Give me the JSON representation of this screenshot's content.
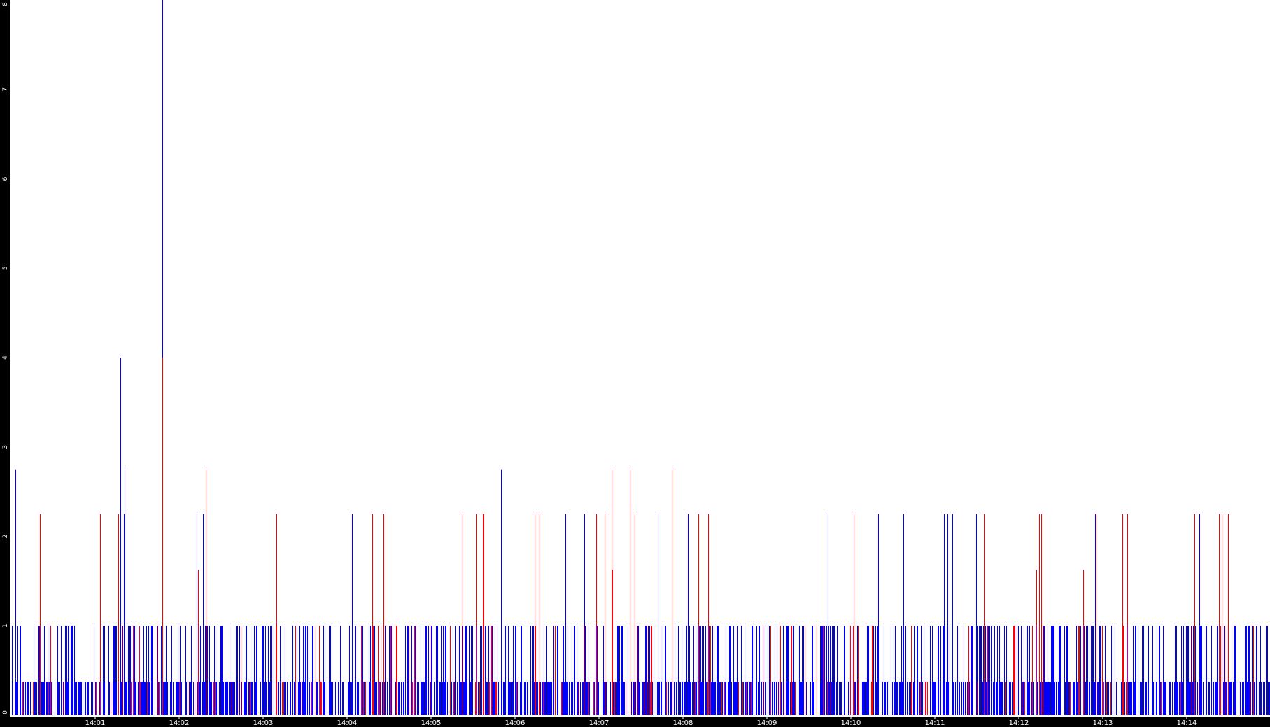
{
  "chart_data": {
    "type": "bar",
    "background": "#ffffff",
    "axis_color": "#000000",
    "label_color": "#ffffff",
    "ylim": [
      0,
      8
    ],
    "y_ticks": [
      "0",
      "1",
      "2",
      "3",
      "4",
      "5",
      "6",
      "7",
      "8"
    ],
    "x_ticks": [
      "14:01",
      "14:02",
      "14:03",
      "14:04",
      "14:05",
      "14:06",
      "14:07",
      "14:08",
      "14:09",
      "14:10",
      "14:11",
      "14:12",
      "14:13",
      "14:14"
    ],
    "grid": false,
    "legend": "none",
    "series": [
      {
        "color": "#0000ff",
        "peaks": [
          {
            "time": "14:00:03",
            "value": 2.75
          },
          {
            "time": "14:01:18",
            "value": 4.0
          },
          {
            "time": "14:01:21",
            "value": 2.75
          },
          {
            "time": "14:01:48",
            "value": 8.0
          },
          {
            "time": "14:05:50",
            "value": 2.75
          }
        ]
      },
      {
        "color": "#ff0000",
        "peaks": [
          {
            "time": "14:01:48",
            "value": 4.0
          },
          {
            "time": "14:02:19",
            "value": 2.75
          },
          {
            "time": "14:07:09",
            "value": 2.75
          },
          {
            "time": "14:07:22",
            "value": 2.75
          },
          {
            "time": "14:07:52",
            "value": 2.75
          }
        ]
      }
    ]
  }
}
